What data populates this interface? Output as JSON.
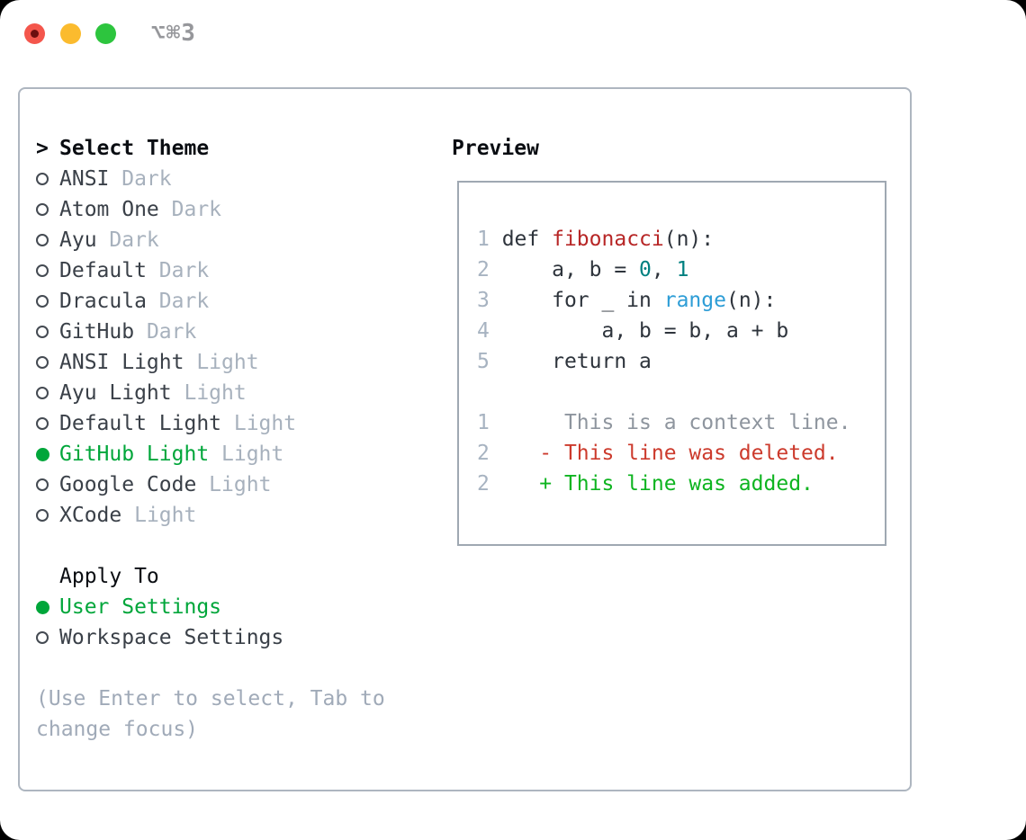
{
  "titlebar": {
    "title": "⌥⌘3",
    "buttons": [
      {
        "name": "close-button",
        "icon": "traffic-light-red"
      },
      {
        "name": "minimize-button",
        "icon": "traffic-light-yellow"
      },
      {
        "name": "zoom-button",
        "icon": "traffic-light-green"
      }
    ]
  },
  "theme_panel": {
    "header": {
      "prompt": ">",
      "label": "Select Theme"
    },
    "themes": [
      {
        "name": "ANSI",
        "variant": "Dark",
        "selected": false
      },
      {
        "name": "Atom One",
        "variant": "Dark",
        "selected": false
      },
      {
        "name": "Ayu",
        "variant": "Dark",
        "selected": false
      },
      {
        "name": "Default",
        "variant": "Dark",
        "selected": false
      },
      {
        "name": "Dracula",
        "variant": "Dark",
        "selected": false
      },
      {
        "name": "GitHub",
        "variant": "Dark",
        "selected": false
      },
      {
        "name": "ANSI Light",
        "variant": "Light",
        "selected": false
      },
      {
        "name": "Ayu Light",
        "variant": "Light",
        "selected": false
      },
      {
        "name": "Default Light",
        "variant": "Light",
        "selected": false
      },
      {
        "name": "GitHub Light",
        "variant": "Light",
        "selected": true
      },
      {
        "name": "Google Code",
        "variant": "Light",
        "selected": false
      },
      {
        "name": "XCode",
        "variant": "Light",
        "selected": false
      }
    ],
    "apply_to": {
      "label": "Apply To",
      "options": [
        {
          "name": "User Settings",
          "selected": true
        },
        {
          "name": "Workspace Settings",
          "selected": false
        }
      ]
    },
    "help_lines": [
      "(Use Enter to select, Tab to",
      "change focus)"
    ]
  },
  "preview": {
    "header": "Preview",
    "code_lines": [
      [
        {
          "t": "1",
          "c": "linenum"
        },
        {
          "t": " def ",
          "c": "default"
        },
        {
          "t": "fibonacci",
          "c": "function"
        },
        {
          "t": "(n):",
          "c": "default"
        }
      ],
      [
        {
          "t": "2",
          "c": "linenum"
        },
        {
          "t": "     a, b = ",
          "c": "default"
        },
        {
          "t": "0",
          "c": "literal"
        },
        {
          "t": ", ",
          "c": "default"
        },
        {
          "t": "1",
          "c": "literal"
        }
      ],
      [
        {
          "t": "3",
          "c": "linenum"
        },
        {
          "t": "     for _ in ",
          "c": "default"
        },
        {
          "t": "range",
          "c": "builtin"
        },
        {
          "t": "(n):",
          "c": "default"
        }
      ],
      [
        {
          "t": "4",
          "c": "linenum"
        },
        {
          "t": "         a, b = b, a + b",
          "c": "default"
        }
      ],
      [
        {
          "t": "5",
          "c": "linenum"
        },
        {
          "t": "     return a",
          "c": "default"
        }
      ],
      [],
      [
        {
          "t": "1",
          "c": "linenum"
        },
        {
          "t": "      This is a context line.",
          "c": "context"
        }
      ],
      [
        {
          "t": "2",
          "c": "linenum"
        },
        {
          "t": "    - This line was deleted.",
          "c": "deleted"
        }
      ],
      [
        {
          "t": "2",
          "c": "linenum"
        },
        {
          "t": "    + This line was added.",
          "c": "added"
        }
      ]
    ]
  },
  "colors": {
    "selected_green": "#00a63a",
    "added_green": "#0eb420",
    "deleted_red": "#cc3a2c",
    "function_red": "#b72626",
    "literal_teal": "#008080",
    "builtin_blue": "#2d9dd6",
    "traffic_red": "#f4564c",
    "traffic_yellow": "#fbbb2e",
    "traffic_green": "#2dc53e"
  }
}
